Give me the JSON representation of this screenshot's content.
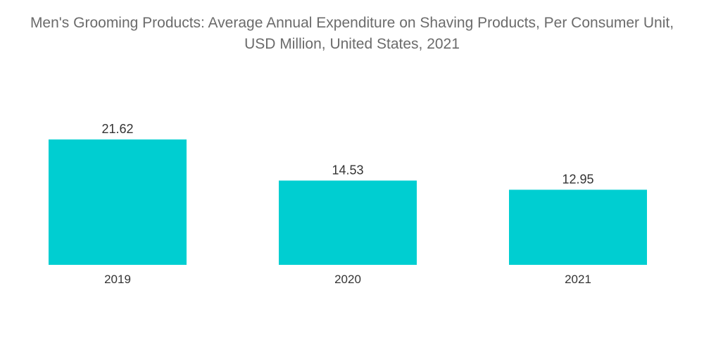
{
  "chart_data": {
    "type": "bar",
    "title": "Men's Grooming Products: Average Annual Expenditure on Shaving Products, Per Consumer Unit, USD Million, United States, 2021",
    "categories": [
      "2019",
      "2020",
      "2021"
    ],
    "values": [
      21.62,
      14.53,
      12.95
    ],
    "value_labels": [
      "21.62",
      "14.53",
      "12.95"
    ],
    "xlabel": "",
    "ylabel": "",
    "ylim": [
      0,
      21.62
    ],
    "grid": false,
    "legend": "none",
    "bar_color": "#00CED1"
  }
}
